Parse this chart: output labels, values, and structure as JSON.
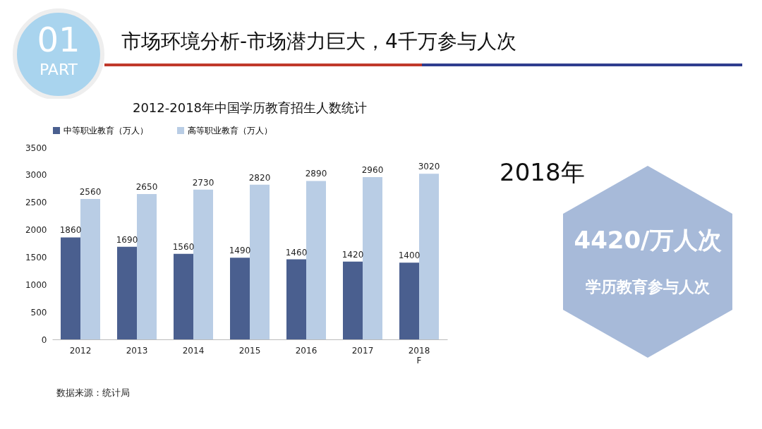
{
  "chart_data": {
    "type": "bar",
    "title": "2012-2018年中国学历教育招生人数统计",
    "subtitle": "市场环境分析-市场潜力巨大，4千万参与人次",
    "categories": [
      "2012",
      "2013",
      "2014",
      "2015",
      "2016",
      "2017",
      "2018\nF"
    ],
    "series": [
      {
        "name": "中等职业教育（万人）",
        "color": "#4a5f8f",
        "values": [
          1860,
          1690,
          1560,
          1490,
          1460,
          1420,
          1400
        ]
      },
      {
        "name": "高等职业教育（万人）",
        "color": "#b9cde5",
        "values": [
          2560,
          2650,
          2730,
          2820,
          2890,
          2960,
          3020
        ]
      }
    ],
    "ylim": [
      0,
      3500
    ],
    "yticks": [
      0,
      500,
      1000,
      1500,
      2000,
      2500,
      3000,
      3500
    ],
    "grid": false,
    "legend": "top",
    "data_labels": true,
    "annotations": [
      "01",
      "PART",
      "2018年",
      "4420/万人次",
      "学历教育参与人次",
      "数据来源：统计局"
    ]
  }
}
